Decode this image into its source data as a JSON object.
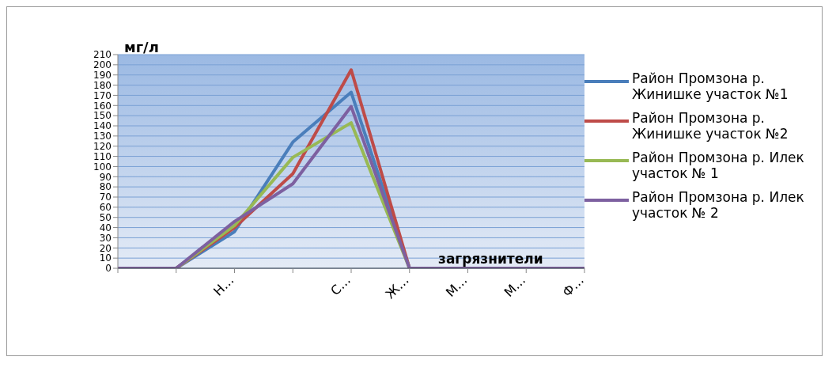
{
  "chart_data": {
    "type": "line",
    "xlabel": "загрязнители",
    "ylabel": "мг/л",
    "categories": [
      null,
      null,
      "Н…",
      null,
      "С…",
      "Ж…",
      "М…",
      "М…",
      "Ф…"
    ],
    "series": [
      {
        "name": "Район Промзона р. Жинишке  участок №1",
        "color": "#4a7ebb",
        "values": [
          null,
          0,
          36,
          124,
          173,
          0,
          null,
          null,
          null
        ]
      },
      {
        "name": "Район Промзона р. Жинишке участок  №2",
        "color": "#be4b48",
        "values": [
          null,
          0,
          40,
          93,
          195,
          0,
          null,
          null,
          null
        ]
      },
      {
        "name": "Район Промзона р. Илек участок № 1",
        "color": "#98b954",
        "values": [
          null,
          0,
          42,
          109,
          143,
          0,
          null,
          null,
          null
        ]
      },
      {
        "name": "Район Промзона р. Илек участок № 2",
        "color": "#7d60a0",
        "values": [
          0,
          0,
          46,
          83,
          159,
          0,
          0,
          0,
          0
        ]
      }
    ],
    "ylim": [
      0,
      210
    ],
    "yticks": [
      0,
      10,
      20,
      30,
      40,
      50,
      60,
      70,
      80,
      90,
      100,
      110,
      120,
      130,
      140,
      150,
      160,
      170,
      180,
      190,
      200,
      210
    ],
    "grid": "y",
    "legend": "right",
    "marker": "none",
    "line_style": "solid"
  }
}
